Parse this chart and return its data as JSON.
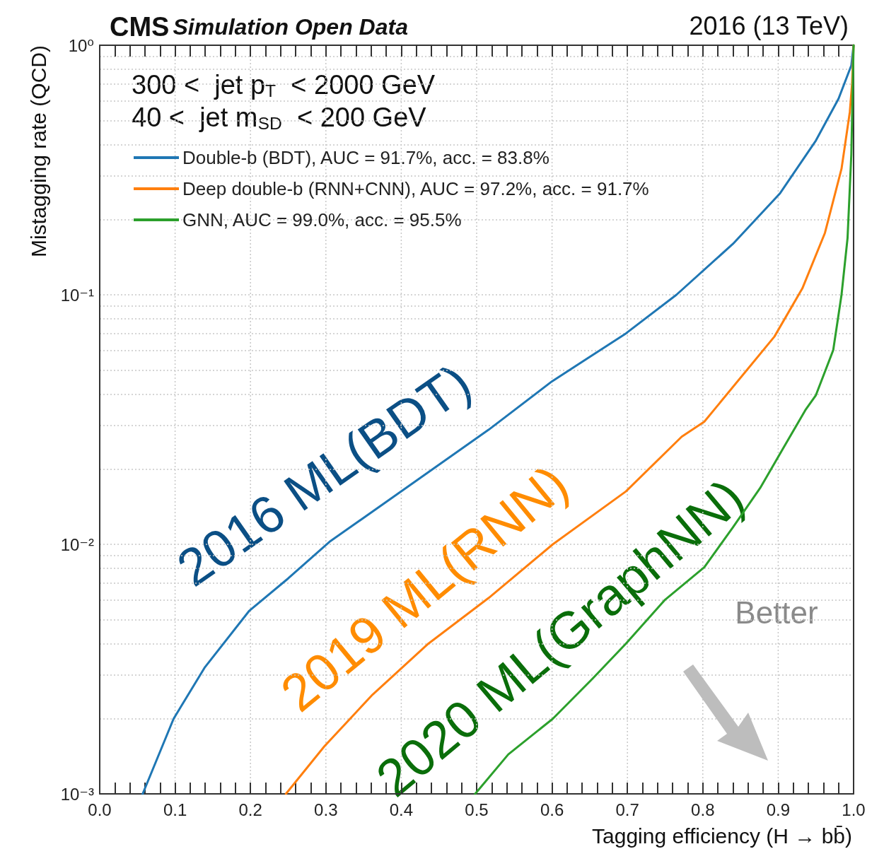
{
  "chart_data": {
    "type": "line",
    "title": "CMS",
    "subtitle": "Simulation Open Data",
    "xlabel": "Tagging efficiency (H → bb̄)",
    "ylabel": "Mistagging rate (QCD)",
    "annotations": [
      "2016 (13 TeV)",
      "300 <  jet p$_{T}$  < 2000 GeV",
      "40 <  jet m$_{SD}$  < 200 GeV",
      "2016 ML(BDT)",
      "2019 ML(RNN)",
      "2020 ML(GraphNN)",
      "Better"
    ],
    "xlim": [
      0,
      1
    ],
    "xticks": [
      {
        "value": 0,
        "label": "0.0"
      },
      {
        "value": 0.02,
        "label": null
      },
      {
        "value": 0.04,
        "label": null
      },
      {
        "value": 0.06,
        "label": null
      },
      {
        "value": 0.08,
        "label": null
      },
      0.1,
      {
        "value": 0.12,
        "label": null
      },
      {
        "value": 0.14,
        "label": null
      },
      {
        "value": 0.16,
        "label": null
      },
      {
        "value": 0.18,
        "label": null
      },
      0.2,
      {
        "value": 0.22,
        "label": null
      },
      {
        "value": 0.24,
        "label": null
      },
      {
        "value": 0.26,
        "label": null
      },
      {
        "value": 0.28,
        "label": null
      },
      0.3,
      {
        "value": 0.32,
        "label": null
      },
      {
        "value": 0.34,
        "label": null
      },
      {
        "value": 0.36,
        "label": null
      },
      {
        "value": 0.38,
        "label": null
      },
      0.4,
      {
        "value": 0.42,
        "label": null
      },
      {
        "value": 0.44,
        "label": null
      },
      {
        "value": 0.46,
        "label": null
      },
      {
        "value": 0.48,
        "label": null
      },
      0.5,
      {
        "value": 0.52,
        "label": null
      },
      {
        "value": 0.54,
        "label": null
      },
      {
        "value": 0.56,
        "label": null
      },
      {
        "value": 0.58,
        "label": null
      },
      0.6,
      {
        "value": 0.62,
        "label": null
      },
      {
        "value": 0.64,
        "label": null
      },
      {
        "value": 0.66,
        "label": null
      },
      {
        "value": 0.68,
        "label": null
      },
      0.7,
      {
        "value": 0.72,
        "label": null
      },
      {
        "value": 0.74,
        "label": null
      },
      {
        "value": 0.76,
        "label": null
      },
      {
        "value": 0.78,
        "label": null
      },
      0.8,
      {
        "value": 0.82,
        "label": null
      },
      {
        "value": 0.84,
        "label": null
      },
      {
        "value": 0.86,
        "label": null
      },
      {
        "value": 0.88,
        "label": null
      },
      0.9,
      {
        "value": 0.92,
        "label": null
      },
      {
        "value": 0.94,
        "label": null
      },
      {
        "value": 0.96,
        "label": null
      },
      {
        "value": 0.98,
        "label": null
      },
      {
        "value": 1,
        "label": "1.0"
      }
    ],
    "log": "y",
    "ylim": [
      0.001,
      1
    ],
    "yticks": [
      {
        "value": 0.001,
        "label": "10⁻³"
      },
      {
        "value": 0.002,
        "label": null
      },
      {
        "value": 0.003,
        "label": null
      },
      {
        "value": 0.004,
        "label": null
      },
      {
        "value": 0.005,
        "label": null
      },
      {
        "value": 0.006,
        "label": null
      },
      {
        "value": 0.007,
        "label": null
      },
      {
        "value": 0.008,
        "label": null
      },
      {
        "value": 0.009,
        "label": null
      },
      {
        "value": 0.01,
        "label": "10⁻²"
      },
      {
        "value": 0.02,
        "label": null
      },
      {
        "value": 0.03,
        "label": null
      },
      {
        "value": 0.04,
        "label": null
      },
      {
        "value": 0.05,
        "label": null
      },
      {
        "value": 0.06,
        "label": null
      },
      {
        "value": 0.07,
        "label": null
      },
      {
        "value": 0.08,
        "label": null
      },
      {
        "value": 0.09,
        "label": null
      },
      {
        "value": 0.1,
        "label": "10⁻¹"
      },
      {
        "value": 0.2,
        "label": null
      },
      {
        "value": 0.3,
        "label": null
      },
      {
        "value": 0.4,
        "label": null
      },
      {
        "value": 0.5,
        "label": null
      },
      {
        "value": 0.6,
        "label": null
      },
      {
        "value": 0.7,
        "label": null
      },
      {
        "value": 0.8,
        "label": null
      },
      {
        "value": 0.9,
        "label": null
      },
      {
        "value": 1,
        "label": "10⁰"
      }
    ],
    "grid": true,
    "legend": "top left",
    "marker": "none",
    "line_style": "solid",
    "series": [
      {
        "name": "Double-b (BDT), AUC = 91.7%, acc. = 83.8%",
        "color": "#1f77b4",
        "x": [
          0.057,
          0.098,
          0.139,
          0.198,
          0.25,
          0.306,
          0.4,
          0.516,
          0.6,
          0.698,
          0.765,
          0.84,
          0.902,
          0.95,
          0.98,
          0.997,
          1.0
        ],
        "values": [
          0.001,
          0.002,
          0.0032,
          0.0054,
          0.0073,
          0.0103,
          0.0163,
          0.0288,
          0.045,
          0.07,
          0.1,
          0.16,
          0.254,
          0.415,
          0.61,
          0.83,
          1.0
        ]
      },
      {
        "name": "Deep double-b (RNN+CNN), AUC = 97.2%, acc. = 91.7%",
        "color": "#ff7f0e",
        "x": [
          0.247,
          0.298,
          0.362,
          0.436,
          0.516,
          0.601,
          0.698,
          0.772,
          0.802,
          0.895,
          0.932,
          0.962,
          0.984,
          0.995,
          0.998,
          1.0
        ],
        "values": [
          0.001,
          0.00155,
          0.0025,
          0.004,
          0.0061,
          0.01,
          0.0163,
          0.027,
          0.031,
          0.068,
          0.106,
          0.177,
          0.32,
          0.54,
          0.7,
          1.0
        ]
      },
      {
        "name": "GNN, AUC = 99.0%, acc. = 95.5%",
        "color": "#2ca02c",
        "x": [
          0.498,
          0.542,
          0.601,
          0.654,
          0.698,
          0.75,
          0.802,
          0.84,
          0.876,
          0.906,
          0.936,
          0.95,
          0.973,
          0.984,
          0.992,
          0.997,
          1.0
        ],
        "values": [
          0.001,
          0.00144,
          0.002,
          0.0029,
          0.004,
          0.006,
          0.0081,
          0.0117,
          0.0168,
          0.0241,
          0.0345,
          0.0396,
          0.06,
          0.1,
          0.169,
          0.366,
          1.0
        ]
      }
    ]
  }
}
